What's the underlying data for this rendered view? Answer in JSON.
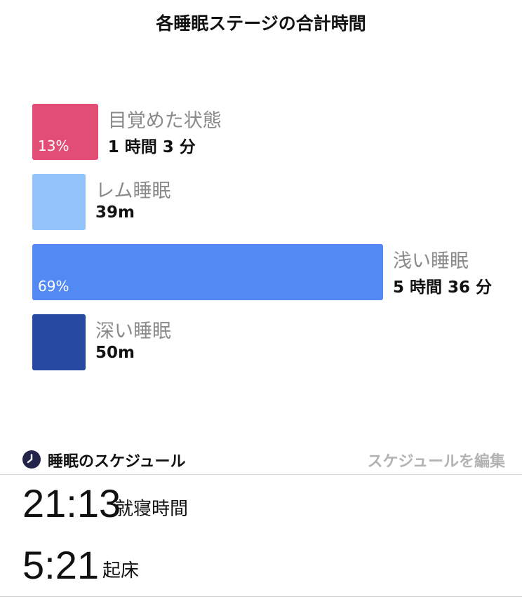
{
  "chart_data": {
    "type": "bar",
    "title": "各睡眠ステージの合計時間",
    "categories": [
      "目覚めた状態",
      "レム睡眠",
      "浅い睡眠",
      "深い睡眠"
    ],
    "values": [
      63,
      39,
      336,
      50
    ],
    "value_labels": [
      "1 時間 3 分",
      "39m",
      "5 時間 36 分",
      "50m"
    ],
    "percent_labels": [
      "13%",
      "",
      "69%",
      ""
    ],
    "percent_values": [
      13,
      8,
      69,
      10
    ],
    "colors": [
      "#e14d74",
      "#93c3fb",
      "#5389f3",
      "#27499f"
    ],
    "orientation": "horizontal",
    "grid": false
  },
  "schedule": {
    "icon": "clock-icon",
    "title": "睡眠のスケジュール",
    "edit_label": "スケジュールを編集",
    "bedtime": {
      "time": "21:13",
      "label": "就寝時間"
    },
    "wake": {
      "time": "5:21",
      "label": "起床"
    }
  }
}
